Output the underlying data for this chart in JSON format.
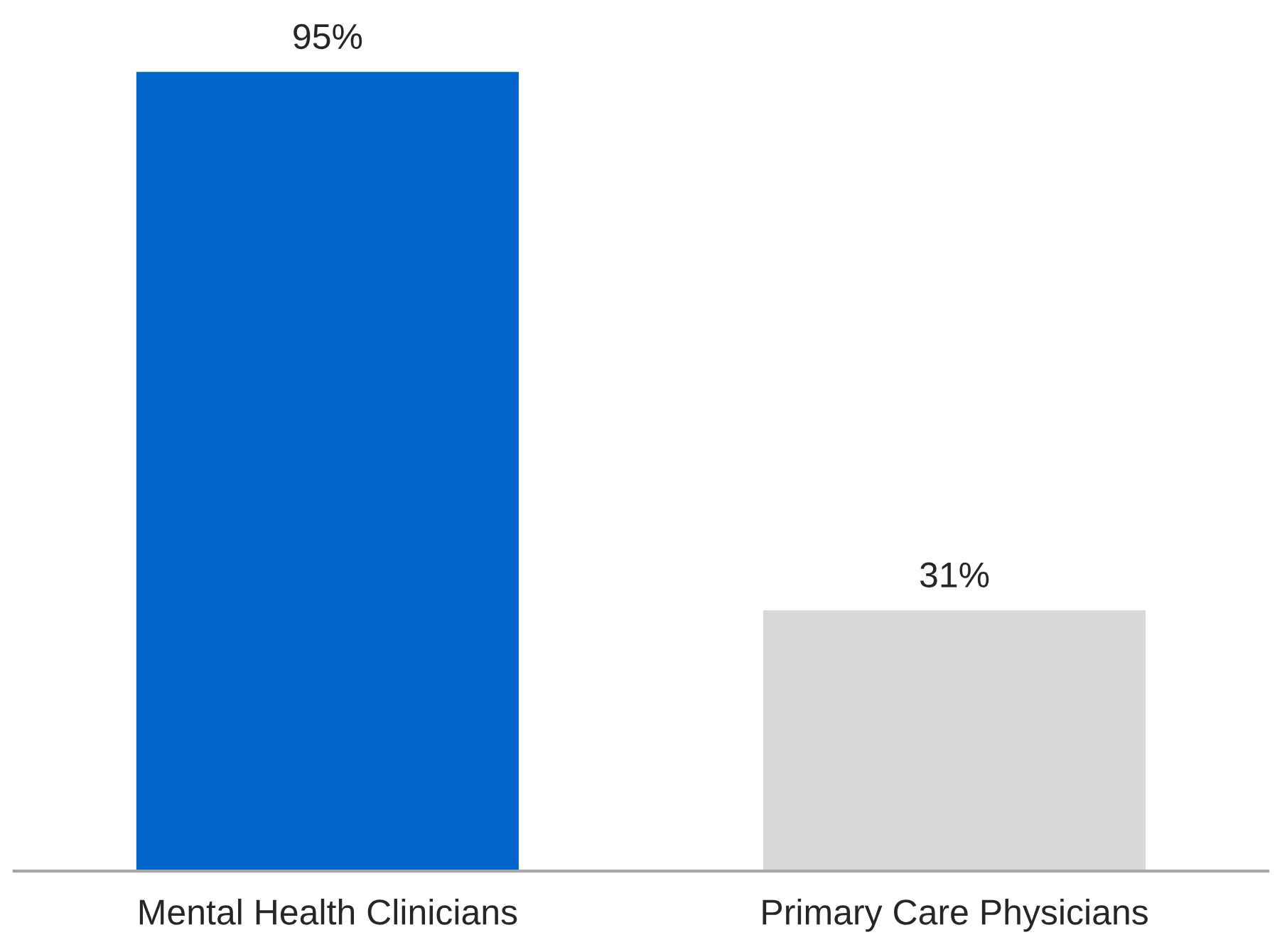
{
  "chart_data": {
    "type": "bar",
    "categories": [
      "Mental Health Clinicians",
      "Primary Care Physicians"
    ],
    "values": [
      95,
      31
    ],
    "colors": [
      "#0066cc",
      "#d9d9d9"
    ],
    "value_labels": [
      "95%",
      "31%"
    ],
    "grid": false,
    "legend": false,
    "tick_labels": "x"
  }
}
